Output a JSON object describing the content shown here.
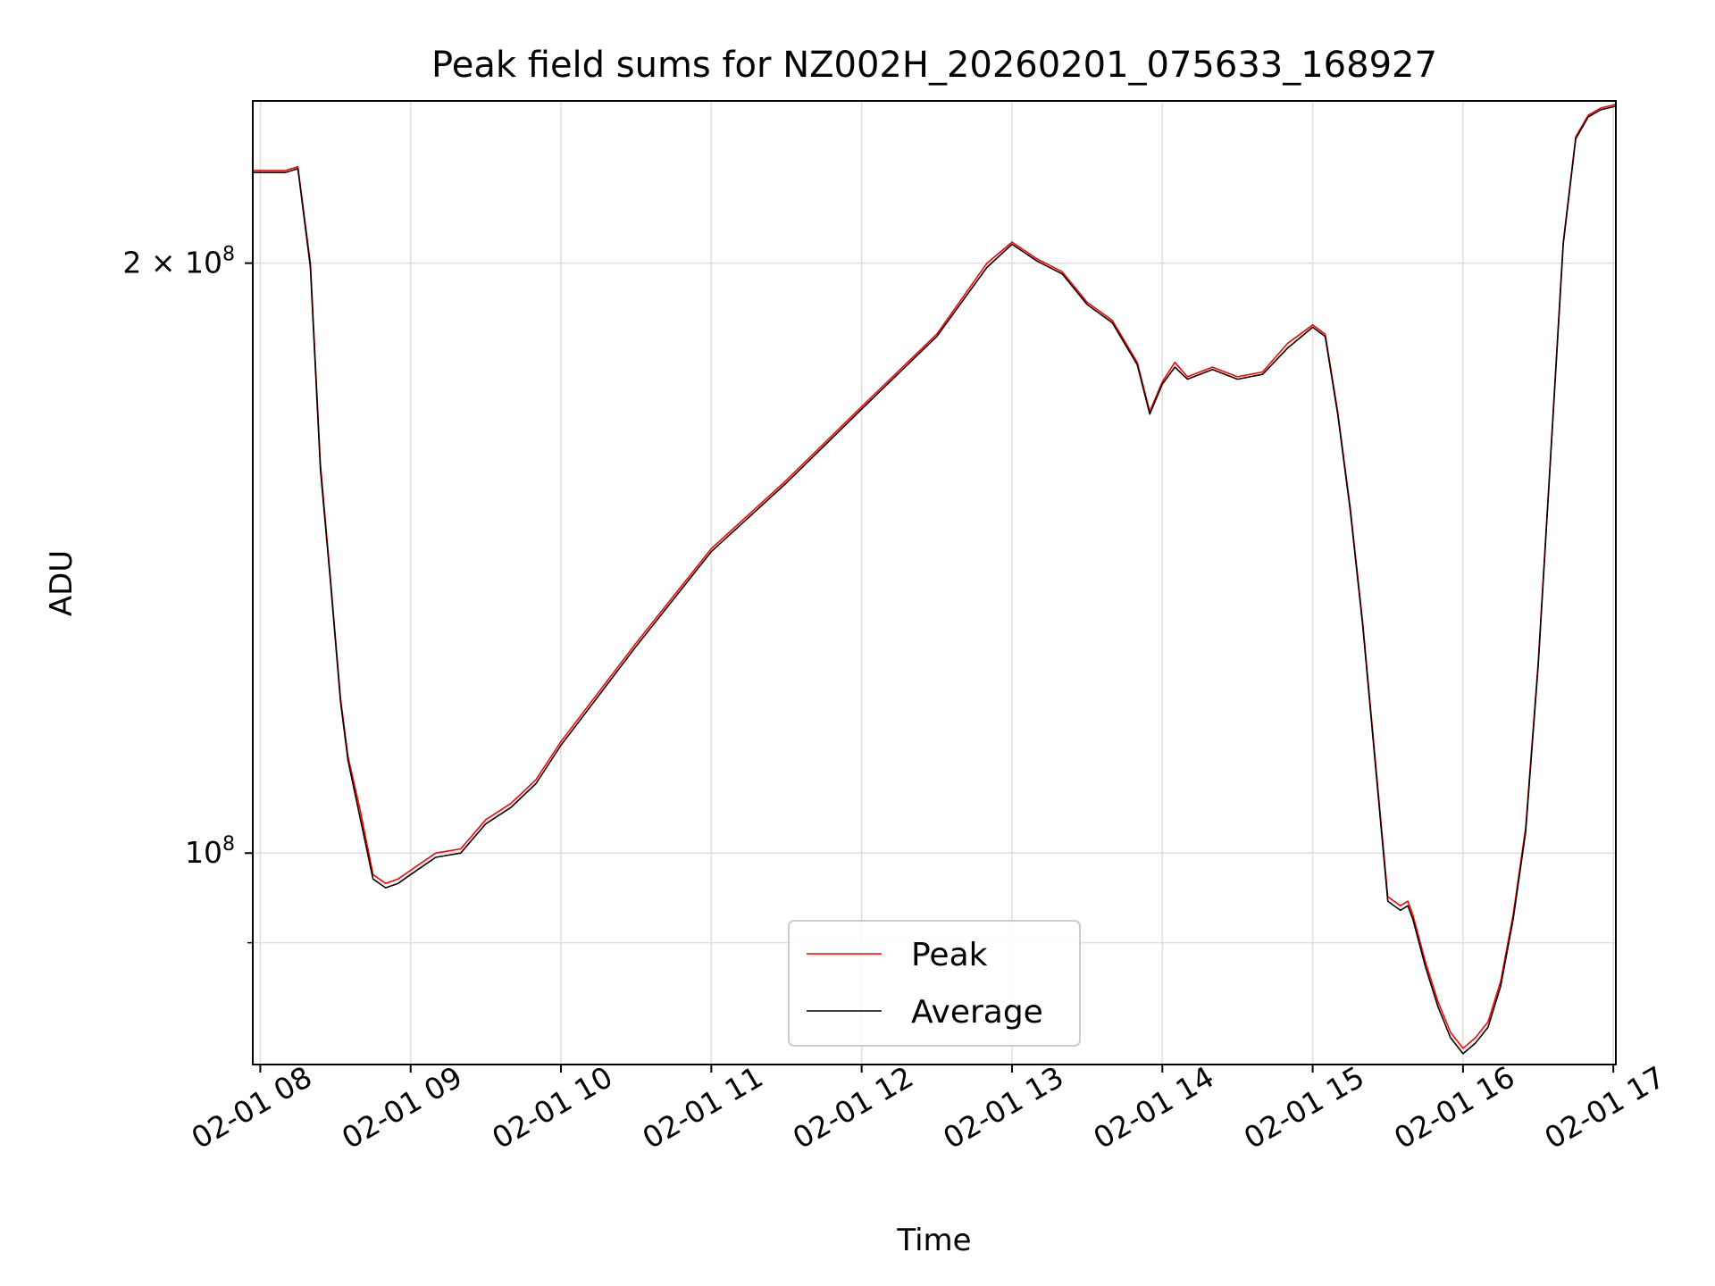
{
  "chart_data": {
    "type": "line",
    "title": "Peak field sums for NZ002H_20260201_075633_168927",
    "xlabel": "Time",
    "ylabel": "ADU",
    "y_scale": "log",
    "ylim": [
      78000000,
      242000000
    ],
    "xlim": [
      "2026-02-01 07:57",
      "2026-02-01 17:01"
    ],
    "grid": true,
    "legend_position": "lower center",
    "x_ticks": [
      {
        "value": "2026-02-01 08:00",
        "label": "02-01 08"
      },
      {
        "value": "2026-02-01 09:00",
        "label": "02-01 09"
      },
      {
        "value": "2026-02-01 10:00",
        "label": "02-01 10"
      },
      {
        "value": "2026-02-01 11:00",
        "label": "02-01 11"
      },
      {
        "value": "2026-02-01 12:00",
        "label": "02-01 12"
      },
      {
        "value": "2026-02-01 13:00",
        "label": "02-01 13"
      },
      {
        "value": "2026-02-01 14:00",
        "label": "02-01 14"
      },
      {
        "value": "2026-02-01 15:00",
        "label": "02-01 15"
      },
      {
        "value": "2026-02-01 16:00",
        "label": "02-01 16"
      },
      {
        "value": "2026-02-01 17:00",
        "label": "02-01 17"
      }
    ],
    "y_ticks": [
      {
        "value": 100000000,
        "mantissa": "",
        "base": "10",
        "exp": "8"
      },
      {
        "value": 200000000,
        "mantissa": "2 × ",
        "base": "10",
        "exp": "8"
      }
    ],
    "y_minor_ticks": [
      90000000
    ],
    "series": [
      {
        "name": "Peak",
        "color": "#ff0000",
        "x": [
          "2026-02-01 07:57",
          "2026-02-01 08:10",
          "2026-02-01 08:15",
          "2026-02-01 08:20",
          "2026-02-01 08:24",
          "2026-02-01 08:28",
          "2026-02-01 08:32",
          "2026-02-01 08:35",
          "2026-02-01 08:40",
          "2026-02-01 08:45",
          "2026-02-01 08:50",
          "2026-02-01 08:55",
          "2026-02-01 09:00",
          "2026-02-01 09:10",
          "2026-02-01 09:20",
          "2026-02-01 09:30",
          "2026-02-01 09:40",
          "2026-02-01 09:50",
          "2026-02-01 10:00",
          "2026-02-01 10:30",
          "2026-02-01 11:00",
          "2026-02-01 11:30",
          "2026-02-01 12:00",
          "2026-02-01 12:30",
          "2026-02-01 12:50",
          "2026-02-01 13:00",
          "2026-02-01 13:10",
          "2026-02-01 13:20",
          "2026-02-01 13:30",
          "2026-02-01 13:40",
          "2026-02-01 13:50",
          "2026-02-01 13:55",
          "2026-02-01 14:00",
          "2026-02-01 14:05",
          "2026-02-01 14:10",
          "2026-02-01 14:20",
          "2026-02-01 14:30",
          "2026-02-01 14:40",
          "2026-02-01 14:50",
          "2026-02-01 15:00",
          "2026-02-01 15:05",
          "2026-02-01 15:10",
          "2026-02-01 15:15",
          "2026-02-01 15:20",
          "2026-02-01 15:30",
          "2026-02-01 15:35",
          "2026-02-01 15:38",
          "2026-02-01 15:40",
          "2026-02-01 15:45",
          "2026-02-01 15:50",
          "2026-02-01 15:55",
          "2026-02-01 16:00",
          "2026-02-01 16:05",
          "2026-02-01 16:10",
          "2026-02-01 16:15",
          "2026-02-01 16:20",
          "2026-02-01 16:25",
          "2026-02-01 16:30",
          "2026-02-01 16:35",
          "2026-02-01 16:40",
          "2026-02-01 16:45",
          "2026-02-01 16:50",
          "2026-02-01 16:55",
          "2026-02-01 17:01"
        ],
        "y": [
          223000000,
          223000000,
          224000000,
          200000000,
          158000000,
          138000000,
          120000000,
          112000000,
          105000000,
          97500000,
          96500000,
          97000000,
          98000000,
          100000000,
          100500000,
          104000000,
          106000000,
          109000000,
          114000000,
          128000000,
          143000000,
          155000000,
          169000000,
          184000000,
          200000000,
          205000000,
          201000000,
          198000000,
          191000000,
          187000000,
          178000000,
          168000000,
          174000000,
          178000000,
          175000000,
          177000000,
          175000000,
          176000000,
          182000000,
          186000000,
          184000000,
          168000000,
          150000000,
          131000000,
          95000000,
          94000000,
          94500000,
          93000000,
          88000000,
          84000000,
          81000000,
          79500000,
          80500000,
          82000000,
          86000000,
          93000000,
          103000000,
          125000000,
          160000000,
          205000000,
          232000000,
          238000000,
          240000000,
          241000000
        ]
      },
      {
        "name": "Average",
        "color": "#000000",
        "x": [
          "2026-02-01 07:57",
          "2026-02-01 08:10",
          "2026-02-01 08:15",
          "2026-02-01 08:20",
          "2026-02-01 08:24",
          "2026-02-01 08:28",
          "2026-02-01 08:32",
          "2026-02-01 08:35",
          "2026-02-01 08:40",
          "2026-02-01 08:45",
          "2026-02-01 08:50",
          "2026-02-01 08:55",
          "2026-02-01 09:00",
          "2026-02-01 09:10",
          "2026-02-01 09:20",
          "2026-02-01 09:30",
          "2026-02-01 09:40",
          "2026-02-01 09:50",
          "2026-02-01 10:00",
          "2026-02-01 10:30",
          "2026-02-01 11:00",
          "2026-02-01 11:30",
          "2026-02-01 12:00",
          "2026-02-01 12:30",
          "2026-02-01 12:50",
          "2026-02-01 13:00",
          "2026-02-01 13:10",
          "2026-02-01 13:20",
          "2026-02-01 13:30",
          "2026-02-01 13:40",
          "2026-02-01 13:50",
          "2026-02-01 13:55",
          "2026-02-01 14:00",
          "2026-02-01 14:05",
          "2026-02-01 14:10",
          "2026-02-01 14:20",
          "2026-02-01 14:30",
          "2026-02-01 14:40",
          "2026-02-01 14:50",
          "2026-02-01 15:00",
          "2026-02-01 15:05",
          "2026-02-01 15:10",
          "2026-02-01 15:15",
          "2026-02-01 15:20",
          "2026-02-01 15:30",
          "2026-02-01 15:35",
          "2026-02-01 15:38",
          "2026-02-01 15:40",
          "2026-02-01 15:45",
          "2026-02-01 15:50",
          "2026-02-01 15:55",
          "2026-02-01 16:00",
          "2026-02-01 16:05",
          "2026-02-01 16:10",
          "2026-02-01 16:15",
          "2026-02-01 16:20",
          "2026-02-01 16:25",
          "2026-02-01 16:30",
          "2026-02-01 16:35",
          "2026-02-01 16:40",
          "2026-02-01 16:45",
          "2026-02-01 16:50",
          "2026-02-01 16:55",
          "2026-02-01 17:01"
        ],
        "y": [
          222500000,
          222500000,
          223500000,
          199000000,
          157000000,
          137500000,
          119500000,
          111500000,
          104000000,
          97000000,
          96000000,
          96500000,
          97500000,
          99500000,
          100000000,
          103500000,
          105500000,
          108500000,
          113500000,
          127500000,
          142500000,
          154500000,
          168500000,
          183500000,
          199000000,
          204500000,
          200500000,
          197500000,
          190500000,
          186500000,
          177500000,
          167500000,
          173500000,
          177000000,
          174500000,
          176500000,
          174500000,
          175500000,
          181000000,
          185500000,
          183500000,
          167500000,
          149500000,
          130500000,
          94500000,
          93500000,
          94000000,
          92500000,
          87500000,
          83500000,
          80500000,
          79000000,
          80000000,
          81500000,
          85500000,
          92500000,
          102500000,
          124500000,
          159500000,
          204500000,
          231500000,
          237500000,
          239500000,
          240500000
        ]
      }
    ]
  }
}
